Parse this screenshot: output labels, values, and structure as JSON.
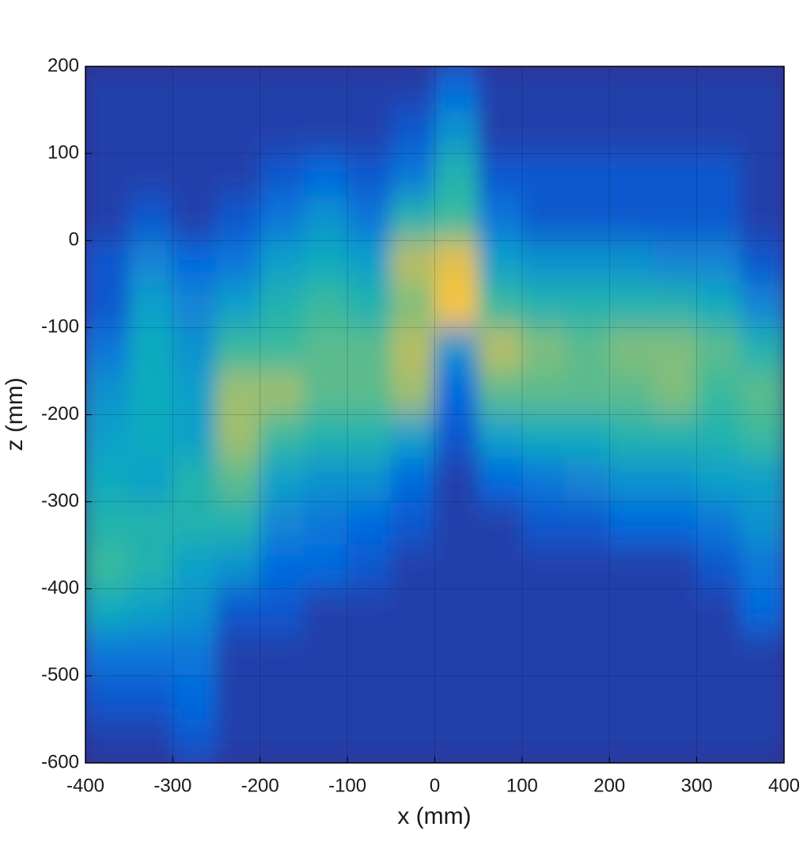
{
  "chart_data": {
    "type": "heatmap",
    "xlabel": "x (mm)",
    "ylabel": "z (mm)",
    "xlim": [
      -400,
      400
    ],
    "ylim": [
      -600,
      200
    ],
    "xticks": [
      -400,
      -300,
      -200,
      -100,
      0,
      100,
      200,
      300,
      400
    ],
    "yticks": [
      -600,
      -500,
      -400,
      -300,
      -200,
      -100,
      0,
      100,
      200
    ],
    "grid": true,
    "colormap": [
      "#352a87",
      "#0363e1",
      "#1485d4",
      "#06a7c6",
      "#38b99e",
      "#92bf73",
      "#d1bb59",
      "#fec832",
      "#f9fb0e"
    ],
    "x": [
      -375,
      -325,
      -275,
      -225,
      -175,
      -125,
      -75,
      -25,
      25,
      75,
      125,
      175,
      225,
      275,
      325,
      375
    ],
    "y": [
      175,
      125,
      75,
      25,
      -25,
      -75,
      -125,
      -175,
      -225,
      -275,
      -325,
      -375,
      -425,
      -475,
      -525,
      -575
    ],
    "z": [
      [
        0.05,
        0.05,
        0.05,
        0.05,
        0.05,
        0.05,
        0.05,
        0.05,
        0.15,
        0.05,
        0.05,
        0.05,
        0.05,
        0.05,
        0.05,
        0.05
      ],
      [
        0.05,
        0.05,
        0.05,
        0.05,
        0.05,
        0.05,
        0.05,
        0.1,
        0.3,
        0.05,
        0.05,
        0.05,
        0.05,
        0.05,
        0.05,
        0.05
      ],
      [
        0.05,
        0.05,
        0.05,
        0.05,
        0.1,
        0.15,
        0.1,
        0.2,
        0.45,
        0.1,
        0.1,
        0.1,
        0.1,
        0.1,
        0.1,
        0.05
      ],
      [
        0.05,
        0.1,
        0.05,
        0.1,
        0.2,
        0.3,
        0.2,
        0.45,
        0.5,
        0.2,
        0.1,
        0.1,
        0.1,
        0.1,
        0.1,
        0.05
      ],
      [
        0.1,
        0.25,
        0.15,
        0.2,
        0.35,
        0.4,
        0.35,
        0.7,
        0.8,
        0.35,
        0.3,
        0.3,
        0.3,
        0.25,
        0.25,
        0.1
      ],
      [
        0.1,
        0.35,
        0.25,
        0.35,
        0.45,
        0.5,
        0.45,
        0.6,
        0.85,
        0.5,
        0.45,
        0.45,
        0.45,
        0.45,
        0.4,
        0.25
      ],
      [
        0.2,
        0.4,
        0.3,
        0.5,
        0.5,
        0.55,
        0.55,
        0.7,
        0.3,
        0.7,
        0.6,
        0.55,
        0.6,
        0.6,
        0.55,
        0.45
      ],
      [
        0.3,
        0.4,
        0.35,
        0.65,
        0.65,
        0.55,
        0.55,
        0.65,
        0.15,
        0.55,
        0.55,
        0.55,
        0.55,
        0.6,
        0.5,
        0.55
      ],
      [
        0.35,
        0.4,
        0.35,
        0.65,
        0.5,
        0.45,
        0.45,
        0.35,
        0.1,
        0.35,
        0.4,
        0.4,
        0.45,
        0.45,
        0.45,
        0.5
      ],
      [
        0.4,
        0.35,
        0.45,
        0.55,
        0.35,
        0.3,
        0.3,
        0.15,
        0.05,
        0.15,
        0.2,
        0.25,
        0.3,
        0.3,
        0.35,
        0.35
      ],
      [
        0.45,
        0.45,
        0.45,
        0.45,
        0.25,
        0.2,
        0.15,
        0.1,
        0.05,
        0.05,
        0.1,
        0.1,
        0.15,
        0.15,
        0.2,
        0.3
      ],
      [
        0.5,
        0.45,
        0.35,
        0.3,
        0.15,
        0.15,
        0.1,
        0.05,
        0.05,
        0.05,
        0.05,
        0.05,
        0.05,
        0.05,
        0.1,
        0.2
      ],
      [
        0.4,
        0.35,
        0.3,
        0.1,
        0.1,
        0.05,
        0.05,
        0.05,
        0.05,
        0.05,
        0.05,
        0.05,
        0.05,
        0.05,
        0.05,
        0.15
      ],
      [
        0.2,
        0.2,
        0.2,
        0.05,
        0.05,
        0.05,
        0.05,
        0.05,
        0.05,
        0.05,
        0.05,
        0.05,
        0.05,
        0.05,
        0.05,
        0.05
      ],
      [
        0.1,
        0.1,
        0.15,
        0.05,
        0.05,
        0.05,
        0.05,
        0.05,
        0.05,
        0.05,
        0.05,
        0.05,
        0.05,
        0.05,
        0.05,
        0.05
      ],
      [
        0.05,
        0.05,
        0.1,
        0.05,
        0.05,
        0.05,
        0.05,
        0.05,
        0.05,
        0.05,
        0.05,
        0.05,
        0.05,
        0.05,
        0.05,
        0.05
      ]
    ]
  }
}
